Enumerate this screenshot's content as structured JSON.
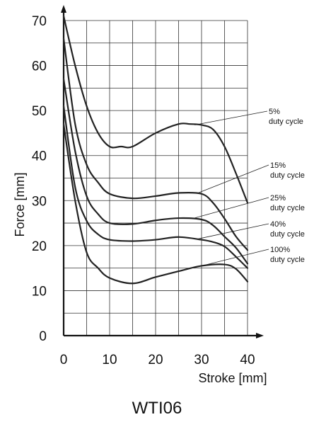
{
  "chart_data": {
    "type": "line",
    "title": "WTI06",
    "xlabel": "Stroke [mm]",
    "ylabel": "Force [mm]",
    "xlim": [
      0,
      40
    ],
    "ylim": [
      0,
      70
    ],
    "xticks": [
      0,
      10,
      20,
      30,
      40
    ],
    "yticks": [
      0,
      10,
      20,
      30,
      40,
      50,
      60,
      70
    ],
    "grid": true,
    "colors": {
      "line": "#222222",
      "grid": "#333333",
      "axis": "#111111"
    },
    "series": [
      {
        "label_line1": "5%",
        "label_line2": "duty cycle",
        "points": [
          [
            0,
            71
          ],
          [
            2.5,
            60
          ],
          [
            5,
            51
          ],
          [
            7.5,
            45
          ],
          [
            10,
            42
          ],
          [
            12.5,
            42
          ],
          [
            15,
            42
          ],
          [
            20,
            45
          ],
          [
            25,
            47
          ],
          [
            27.5,
            47
          ],
          [
            30,
            46.8
          ],
          [
            32.5,
            45.8
          ],
          [
            35,
            42
          ],
          [
            37.5,
            36
          ],
          [
            40,
            29.5
          ]
        ]
      },
      {
        "label_line1": "15%",
        "label_line2": "duty cycle",
        "points": [
          [
            0,
            66
          ],
          [
            2.5,
            47
          ],
          [
            5,
            38
          ],
          [
            7.5,
            34
          ],
          [
            10,
            31.5
          ],
          [
            15,
            30.5
          ],
          [
            20,
            31
          ],
          [
            25,
            31.7
          ],
          [
            30,
            31.5
          ],
          [
            32.5,
            29.5
          ],
          [
            35,
            26
          ],
          [
            37.5,
            22
          ],
          [
            40,
            19
          ]
        ]
      },
      {
        "label_line1": "25%",
        "label_line2": "duty cycle",
        "points": [
          [
            0,
            57
          ],
          [
            2.5,
            41
          ],
          [
            5,
            31
          ],
          [
            7.5,
            27
          ],
          [
            10,
            25
          ],
          [
            15,
            24.8
          ],
          [
            20,
            25.6
          ],
          [
            25,
            26.1
          ],
          [
            30,
            25.8
          ],
          [
            32.5,
            24.5
          ],
          [
            35,
            22
          ],
          [
            37.5,
            19.5
          ],
          [
            40,
            16
          ]
        ]
      },
      {
        "label_line1": "40%",
        "label_line2": "duty cycle",
        "points": [
          [
            0,
            51
          ],
          [
            2.5,
            33
          ],
          [
            5,
            25.5
          ],
          [
            7.5,
            22.5
          ],
          [
            10,
            21.3
          ],
          [
            15,
            21
          ],
          [
            20,
            21.3
          ],
          [
            25,
            21.9
          ],
          [
            30,
            21.3
          ],
          [
            32.5,
            20.8
          ],
          [
            35,
            19.8
          ],
          [
            37.5,
            17.5
          ],
          [
            40,
            15
          ]
        ]
      },
      {
        "label_line1": "100%",
        "label_line2": "duty cycle",
        "points": [
          [
            0,
            47
          ],
          [
            2.5,
            30
          ],
          [
            5,
            18.5
          ],
          [
            7.5,
            15
          ],
          [
            10,
            12.8
          ],
          [
            15,
            11.6
          ],
          [
            20,
            13
          ],
          [
            25,
            14.3
          ],
          [
            30,
            15.5
          ],
          [
            35,
            15.8
          ],
          [
            37.5,
            14.8
          ],
          [
            40,
            12
          ]
        ]
      }
    ]
  }
}
